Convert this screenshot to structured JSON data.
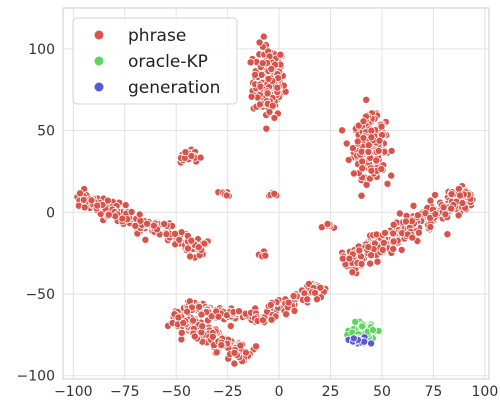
{
  "chart_data": {
    "type": "scatter",
    "title": "",
    "xlabel": "",
    "ylabel": "",
    "xlim": [
      -105,
      102
    ],
    "ylim": [
      -102,
      125
    ],
    "x_ticks": [
      -100,
      -75,
      -50,
      -25,
      0,
      25,
      50,
      75,
      100
    ],
    "y_ticks": [
      -100,
      -50,
      0,
      50,
      100
    ],
    "x_tick_labels": [
      "−100",
      "−75",
      "−50",
      "−25",
      "0",
      "25",
      "50",
      "75",
      "100"
    ],
    "y_tick_labels": [
      "−100",
      "−50",
      "0",
      "50",
      "100"
    ],
    "grid": true,
    "legend_position": "top-left",
    "series": [
      {
        "name": "phrase",
        "color": "#d9534a",
        "clusters": [
          {
            "label": "upper-center blob",
            "center": [
              -5,
              80
            ],
            "spread": [
              7,
              20
            ],
            "count": 170
          },
          {
            "label": "right vertical blob",
            "center": [
              44,
              40
            ],
            "spread": [
              7,
              16
            ],
            "count": 260
          },
          {
            "label": "right diagonal band",
            "from": [
              32,
              -32
            ],
            "to": [
              93,
              12
            ],
            "width": 7,
            "count": 320
          },
          {
            "label": "left diagonal band",
            "from": [
              -98,
              10
            ],
            "to": [
              -35,
              -23
            ],
            "width": 5,
            "count": 190
          },
          {
            "label": "bottom curved band",
            "from": [
              -52,
              -63
            ],
            "to": [
              -15,
              -88
            ],
            "width": 6,
            "count": 180
          },
          {
            "label": "bottom horizontal band",
            "from": [
              -45,
              -58
            ],
            "to": [
              -10,
              -64
            ],
            "width": 4,
            "count": 90
          },
          {
            "label": "bottom-center arc",
            "from": [
              -12,
              -66
            ],
            "to": [
              22,
              -45
            ],
            "width": 5,
            "count": 90
          },
          {
            "label": "small cluster left",
            "center": [
              -43,
              34
            ],
            "spread": [
              4,
              3
            ],
            "count": 25
          },
          {
            "label": "small cluster mid-left",
            "center": [
              -27,
              11
            ],
            "spread": [
              3,
              2
            ],
            "count": 8
          },
          {
            "label": "small cluster center",
            "center": [
              -3,
              11
            ],
            "spread": [
              2,
              2
            ],
            "count": 6
          },
          {
            "label": "small cluster center-low",
            "center": [
              -8,
              -25
            ],
            "spread": [
              2,
              2
            ],
            "count": 6
          },
          {
            "label": "small cluster center-right",
            "center": [
              24,
              -8
            ],
            "spread": [
              2,
              2
            ],
            "count": 7
          }
        ]
      },
      {
        "name": "oracle-KP",
        "color": "#5ed65e",
        "clusters": [
          {
            "label": "lower-right green cluster",
            "center": [
              41,
              -73
            ],
            "spread": [
              6,
              4
            ],
            "count": 75
          }
        ]
      },
      {
        "name": "generation",
        "color": "#5a58d9",
        "clusters": [
          {
            "label": "lower-right blue cluster",
            "center": [
              39,
              -79
            ],
            "spread": [
              4,
              2
            ],
            "count": 30
          }
        ]
      }
    ]
  }
}
